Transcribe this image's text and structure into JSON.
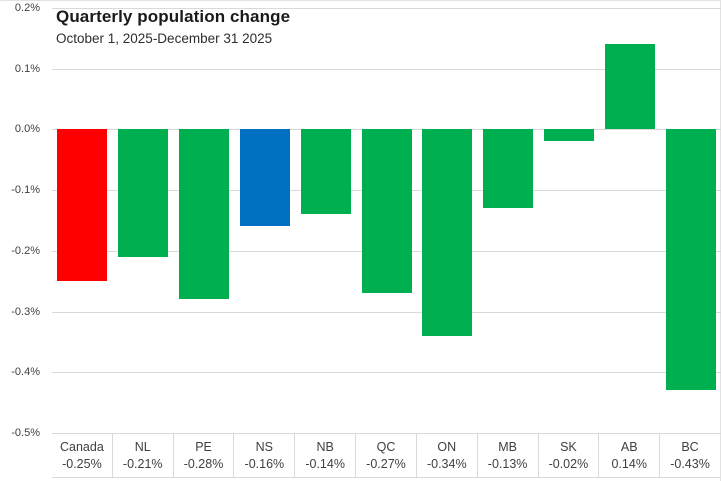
{
  "chart_data": {
    "type": "bar",
    "title": "Quarterly population change",
    "subtitle": "October 1, 2025-December 31 2025",
    "categories": [
      "Canada",
      "NL",
      "PE",
      "NS",
      "NB",
      "QC",
      "ON",
      "MB",
      "SK",
      "AB",
      "BC"
    ],
    "values": [
      -0.25,
      -0.21,
      -0.28,
      -0.16,
      -0.14,
      -0.27,
      -0.34,
      -0.13,
      -0.02,
      0.14,
      -0.43
    ],
    "value_labels": [
      "-0.25%",
      "-0.21%",
      "-0.28%",
      "-0.16%",
      "-0.14%",
      "-0.27%",
      "-0.34%",
      "-0.13%",
      "-0.02%",
      "0.14%",
      "-0.43%"
    ],
    "bar_colors": [
      "#ff0000",
      "#00b050",
      "#00b050",
      "#0070c0",
      "#00b050",
      "#00b050",
      "#00b050",
      "#00b050",
      "#00b050",
      "#00b050",
      "#00b050"
    ],
    "y_tick_labels": [
      "0.2%",
      "0.1%",
      "0.0%",
      "-0.1%",
      "-0.2%",
      "-0.3%",
      "-0.4%",
      "-0.5%"
    ],
    "y_tick_values": [
      0.2,
      0.1,
      0.0,
      -0.1,
      -0.2,
      -0.3,
      -0.4,
      -0.5
    ],
    "ylabel": "",
    "xlabel": "",
    "ylim": [
      -0.5,
      0.2
    ],
    "grid": true,
    "legend_position": "none",
    "x_axis_style": "data table below axis with category codes and value labels"
  },
  "colors": {
    "canada_bar": "#ff0000",
    "province_bar": "#00b050",
    "nova_scotia_bar": "#0070c0",
    "gridline": "#d9d9d9",
    "tick_text": "#404040",
    "title_text": "#1a1a1a"
  }
}
